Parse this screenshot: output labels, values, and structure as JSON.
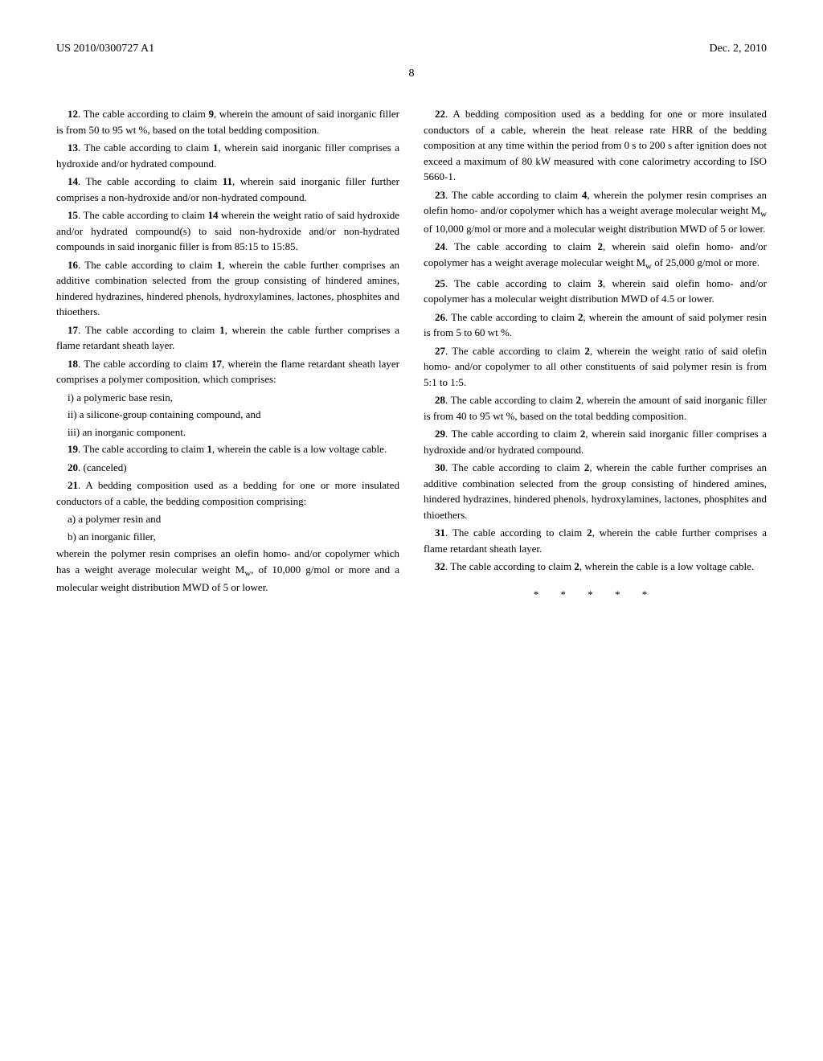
{
  "header": {
    "publication": "US 2010/0300727 A1",
    "date": "Dec. 2, 2010"
  },
  "pageNumber": "8",
  "leftColumn": {
    "claims": [
      {
        "num": "12",
        "text": ". The cable according to claim ",
        "ref": "9",
        "rest": ", wherein the amount of said inorganic filler is from 50 to 95 wt %, based on the total bedding composition."
      },
      {
        "num": "13",
        "text": ". The cable according to claim ",
        "ref": "1",
        "rest": ", wherein said inorganic filler comprises a hydroxide and/or hydrated compound."
      },
      {
        "num": "14",
        "text": ". The cable according to claim ",
        "ref": "11",
        "rest": ", wherein said inorganic filler further comprises a non-hydroxide and/or non-hydrated compound."
      },
      {
        "num": "15",
        "text": ". The cable according to claim ",
        "ref": "14",
        "rest": " wherein the weight ratio of said hydroxide and/or hydrated compound(s) to said non-hydroxide and/or non-hydrated compounds in said inorganic filler is from 85:15 to 15:85."
      },
      {
        "num": "16",
        "text": ". The cable according to claim ",
        "ref": "1",
        "rest": ", wherein the cable further comprises an additive combination selected from the group consisting of hindered amines, hindered hydrazines, hindered phenols, hydroxylamines, lactones, phosphites and thioethers."
      },
      {
        "num": "17",
        "text": ". The cable according to claim ",
        "ref": "1",
        "rest": ", wherein the cable further comprises a flame retardant sheath layer."
      },
      {
        "num": "18",
        "text": ". The cable according to claim ",
        "ref": "17",
        "rest": ", wherein the flame retardant sheath layer comprises a polymer composition, which comprises:"
      }
    ],
    "claim18_items": [
      "i) a polymeric base resin,",
      "ii) a silicone-group containing compound, and",
      "iii) an inorganic component."
    ],
    "claims2": [
      {
        "num": "19",
        "text": ". The cable according to claim ",
        "ref": "1",
        "rest": ", wherein the cable is a low voltage cable."
      },
      {
        "num": "20",
        "text": ". (canceled)",
        "ref": "",
        "rest": ""
      },
      {
        "num": "21",
        "text": ". A bedding composition used as a bedding for one or more insulated conductors of a cable, the bedding composition comprising:",
        "ref": "",
        "rest": ""
      }
    ],
    "claim21_items": [
      "a) a polymer resin and",
      "b) an inorganic filler,"
    ],
    "claim21_wherein": "wherein the polymer resin comprises an olefin homo- and/or copolymer which has a weight average molecular weight M",
    "claim21_sub": "w",
    "claim21_rest": ", of 10,000 g/mol or more and a molecular weight distribution MWD of 5 or lower."
  },
  "rightColumn": {
    "claims": [
      {
        "num": "22",
        "text": ". A bedding composition used as a bedding for one or more insulated conductors of a cable, wherein the heat release rate HRR of the bedding composition at any time within the period from 0 s to 200 s after ignition does not exceed a maximum of 80 kW measured with cone calorimetry according to ISO 5660-1.",
        "ref": "",
        "rest": ""
      }
    ],
    "claim23_pre": ". The cable according to claim ",
    "claim23_ref": "4",
    "claim23_mid": ", wherein the polymer resin comprises an olefin homo- and/or copolymer which has a weight average molecular weight M",
    "claim23_sub": "w",
    "claim23_rest": " of 10,000 g/mol or more and a molecular weight distribution MWD of 5 or lower.",
    "claim24_pre": ". The cable according to claim ",
    "claim24_ref": "2",
    "claim24_mid": ", wherein said olefin homo- and/or copolymer has a weight average molecular weight M",
    "claim24_sub": "w",
    "claim24_rest": " of 25,000 g/mol or more.",
    "claims2": [
      {
        "num": "25",
        "text": ". The cable according to claim ",
        "ref": "3",
        "rest": ", wherein said olefin homo- and/or copolymer has a molecular weight distribution MWD of 4.5 or lower."
      },
      {
        "num": "26",
        "text": ". The cable according to claim ",
        "ref": "2",
        "rest": ", wherein the amount of said polymer resin is from 5 to 60 wt %."
      },
      {
        "num": "27",
        "text": ". The cable according to claim ",
        "ref": "2",
        "rest": ", wherein the weight ratio of said olefin homo- and/or copolymer to all other constituents of said polymer resin is from 5:1 to 1:5."
      },
      {
        "num": "28",
        "text": ". The cable according to claim ",
        "ref": "2",
        "rest": ", wherein the amount of said inorganic filler is from 40 to 95 wt %, based on the total bedding composition."
      },
      {
        "num": "29",
        "text": ". The cable according to claim ",
        "ref": "2",
        "rest": ", wherein said inorganic filler comprises a hydroxide and/or hydrated compound."
      },
      {
        "num": "30",
        "text": ". The cable according to claim ",
        "ref": "2",
        "rest": ", wherein the cable further comprises an additive combination selected from the group consisting of hindered amines, hindered hydrazines, hindered phenols, hydroxylamines, lactones, phosphites and thioethers."
      },
      {
        "num": "31",
        "text": ". The cable according to claim ",
        "ref": "2",
        "rest": ", wherein the cable further comprises a flame retardant sheath layer."
      },
      {
        "num": "32",
        "text": ". The cable according to claim ",
        "ref": "2",
        "rest": ", wherein the cable is a low voltage cable."
      }
    ],
    "asterisks": "* * * * *"
  }
}
